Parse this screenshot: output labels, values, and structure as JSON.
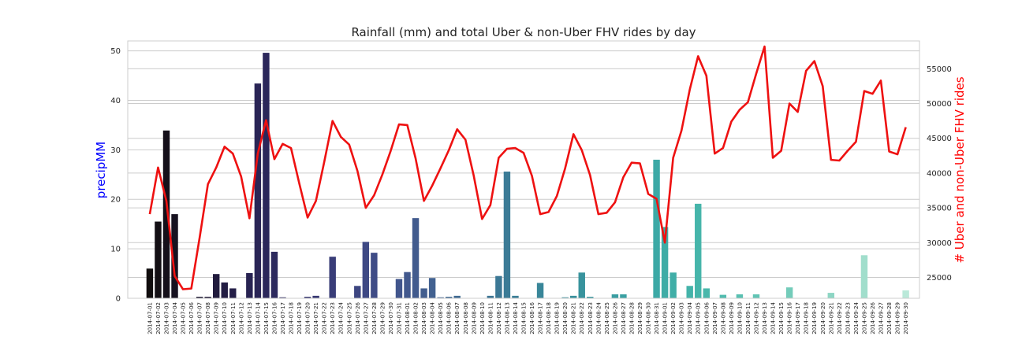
{
  "chart_data": {
    "type": "bar+line",
    "title": "Rainfall (mm) and total Uber & non-Uber FHV rides by day",
    "ylabel_left": "precipMM",
    "ylabel_right": "# Uber and non-Uber FHV rides",
    "ylabel_left_color": "#0000ff",
    "ylabel_right_color": "#ff0000",
    "line_color": "#ee1111",
    "grid": true,
    "ylim_left": [
      0,
      52
    ],
    "yticks_left": [
      0,
      10,
      20,
      30,
      40,
      50
    ],
    "ylim_right": [
      22000,
      59000
    ],
    "yticks_right": [
      25000,
      30000,
      35000,
      40000,
      45000,
      50000,
      55000
    ],
    "categories": [
      "2014-07-01",
      "2014-07-02",
      "2014-07-03",
      "2014-07-04",
      "2014-07-05",
      "2014-07-06",
      "2014-07-07",
      "2014-07-08",
      "2014-07-09",
      "2014-07-10",
      "2014-07-11",
      "2014-07-12",
      "2014-07-13",
      "2014-07-14",
      "2014-07-15",
      "2014-07-16",
      "2014-07-17",
      "2014-07-18",
      "2014-07-19",
      "2014-07-20",
      "2014-07-21",
      "2014-07-22",
      "2014-07-23",
      "2014-07-24",
      "2014-07-25",
      "2014-07-26",
      "2014-07-27",
      "2014-07-28",
      "2014-07-29",
      "2014-07-30",
      "2014-07-31",
      "2014-08-01",
      "2014-08-02",
      "2014-08-03",
      "2014-08-04",
      "2014-08-05",
      "2014-08-06",
      "2014-08-07",
      "2014-08-08",
      "2014-08-09",
      "2014-08-10",
      "2014-08-11",
      "2014-08-12",
      "2014-08-13",
      "2014-08-14",
      "2014-08-15",
      "2014-08-16",
      "2014-08-17",
      "2014-08-18",
      "2014-08-19",
      "2014-08-20",
      "2014-08-21",
      "2014-08-22",
      "2014-08-23",
      "2014-08-24",
      "2014-08-25",
      "2014-08-26",
      "2014-08-27",
      "2014-08-28",
      "2014-08-29",
      "2014-08-30",
      "2014-08-31",
      "2014-09-01",
      "2014-09-02",
      "2014-09-03",
      "2014-09-04",
      "2014-09-05",
      "2014-09-06",
      "2014-09-07",
      "2014-09-08",
      "2014-09-09",
      "2014-09-10",
      "2014-09-11",
      "2014-09-12",
      "2014-09-13",
      "2014-09-14",
      "2014-09-15",
      "2014-09-16",
      "2014-09-17",
      "2014-09-18",
      "2014-09-19",
      "2014-09-20",
      "2014-09-21",
      "2014-09-22",
      "2014-09-23",
      "2014-09-24",
      "2014-09-25",
      "2014-09-26",
      "2014-09-27",
      "2014-09-28",
      "2014-09-29",
      "2014-09-30"
    ],
    "precip": [
      6.0,
      15.5,
      33.9,
      17.0,
      0,
      0,
      0.3,
      0.3,
      4.9,
      3.2,
      2.0,
      0,
      5.1,
      43.4,
      49.6,
      9.4,
      0.2,
      0,
      0,
      0.3,
      0.5,
      0,
      8.4,
      0,
      0,
      2.5,
      11.4,
      9.2,
      0,
      0,
      3.9,
      5.3,
      16.2,
      2.0,
      4.1,
      0.2,
      0.3,
      0.5,
      0,
      0,
      0,
      0.5,
      4.5,
      25.6,
      0.5,
      0,
      0,
      3.1,
      0,
      0,
      0.2,
      0.5,
      5.2,
      0.3,
      0,
      0,
      0.8,
      0.8,
      0,
      0,
      0,
      28.0,
      14.4,
      5.2,
      0,
      2.5,
      19.1,
      2.0,
      0,
      0.7,
      0,
      0.8,
      0,
      0.8,
      0,
      0,
      0,
      2.2,
      0,
      0,
      0,
      0,
      1.1,
      0,
      0,
      0,
      8.7,
      0,
      0,
      0,
      0,
      1.6
    ],
    "rides": [
      34100,
      40800,
      36000,
      25200,
      23300,
      23400,
      30700,
      38400,
      40800,
      43800,
      42800,
      39500,
      33500,
      42800,
      47600,
      42000,
      44200,
      43600,
      38500,
      33600,
      36000,
      41600,
      47500,
      45200,
      44100,
      40300,
      35000,
      36800,
      39800,
      43200,
      47000,
      46900,
      42100,
      36000,
      38200,
      40700,
      43300,
      46300,
      44800,
      39600,
      33400,
      35400,
      42200,
      43500,
      43600,
      42900,
      39600,
      34100,
      34400,
      36700,
      40700,
      45600,
      43300,
      39700,
      34100,
      34300,
      35800,
      39400,
      41500,
      41400,
      37000,
      36300,
      30000,
      42200,
      46100,
      52000,
      56800,
      54000,
      42800,
      43600,
      47400,
      49100,
      50200,
      54300,
      58200,
      42200,
      43200,
      50000,
      48800,
      54700,
      56100,
      52500,
      41900,
      41800,
      43200,
      44500,
      51800,
      51400,
      53300,
      43100,
      42700,
      46600
    ],
    "bar_colors": [
      "#100d0e",
      "#130f14",
      "#15101a",
      "#171220",
      "#191425",
      "#1b152b",
      "#1d1731",
      "#1f1937",
      "#211b3d",
      "#231d43",
      "#251f48",
      "#27214e",
      "#282352",
      "#2a2556",
      "#2b275a",
      "#2d2a5e",
      "#2f2c62",
      "#312f66",
      "#32326a",
      "#34346e",
      "#363772",
      "#373a75",
      "#393d78",
      "#3a407b",
      "#3c437e",
      "#3d4681",
      "#3e4984",
      "#3f4c86",
      "#404f88",
      "#41528a",
      "#41558c",
      "#42588d",
      "#425b8e",
      "#425e8f",
      "#426190",
      "#426491",
      "#416791",
      "#406a92",
      "#3f6d93",
      "#3f7093",
      "#3e7394",
      "#3d7594",
      "#3c7895",
      "#3b7b96",
      "#3b7e97",
      "#3a8197",
      "#3a8398",
      "#398699",
      "#39889a",
      "#388b9b",
      "#388e9c",
      "#38909c",
      "#38939d",
      "#38969e",
      "#38989f",
      "#389ba0",
      "#399da1",
      "#39a0a2",
      "#3aa2a3",
      "#3aa5a4",
      "#3ba7a5",
      "#3ca9a6",
      "#3eaca6",
      "#40aea7",
      "#42b1a8",
      "#44b3a9",
      "#46b5aa",
      "#49b7ab",
      "#4cb9ad",
      "#50bbae",
      "#54bdaf",
      "#58c0b1",
      "#5cc2b2",
      "#61c4b4",
      "#65c6b5",
      "#6ac8b7",
      "#6fcab9",
      "#74ccba",
      "#79cebc",
      "#7ed0be",
      "#83d2c0",
      "#88d4c2",
      "#8dd6c4",
      "#92d8c6",
      "#97dac8",
      "#9cdcca",
      "#a1deCC",
      "#a6e0cf",
      "#abe2d1",
      "#b0e5d4",
      "#b5e7d6",
      "#bae9d9"
    ]
  }
}
